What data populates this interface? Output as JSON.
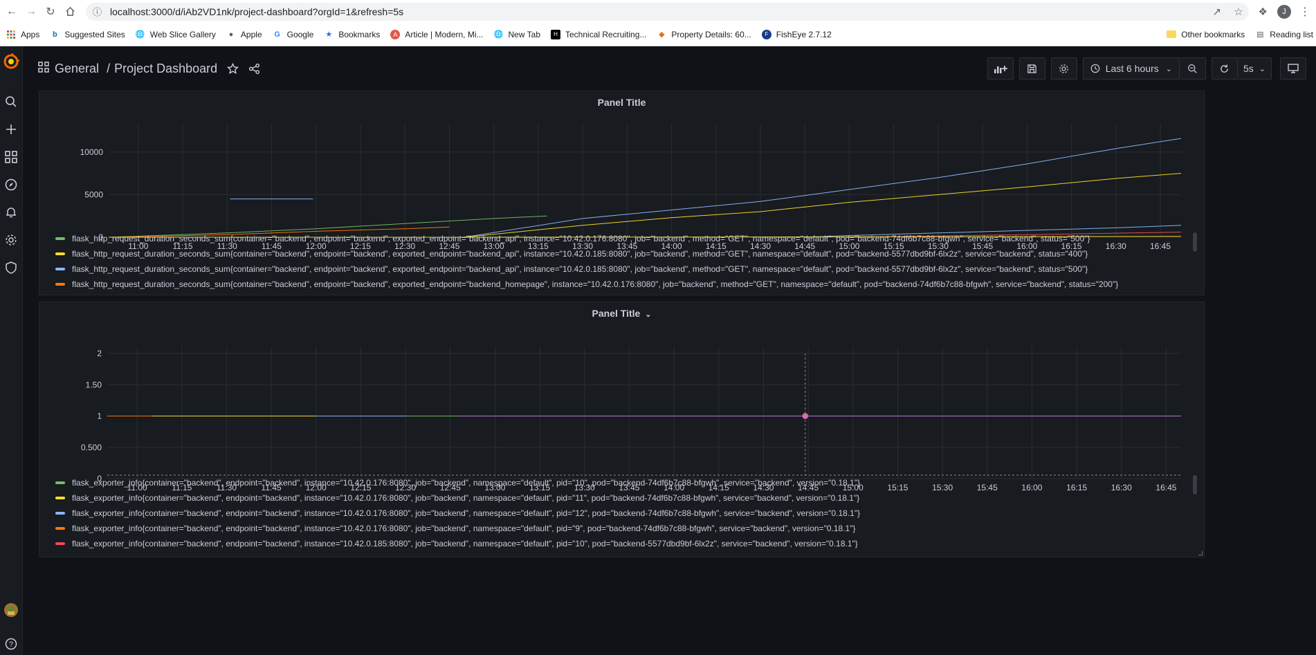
{
  "browser": {
    "url": "localhost:3000/d/iAb2VD1nk/project-dashboard?orgId=1&refresh=5s",
    "profile_initial": "J",
    "bookmarks": [
      {
        "label": "Apps",
        "icon": "apps-grid-icon",
        "color": "#ea4335"
      },
      {
        "label": "Suggested Sites",
        "icon": "bing-icon",
        "color": "#0f6cbd"
      },
      {
        "label": "Web Slice Gallery",
        "icon": "globe-icon",
        "color": "#5f6368"
      },
      {
        "label": "Apple",
        "icon": "apple-icon",
        "color": "#5f6368"
      },
      {
        "label": "Google",
        "icon": "google-icon",
        "color": "#4285f4"
      },
      {
        "label": "Bookmarks",
        "icon": "star-icon",
        "color": "#1a73e8"
      },
      {
        "label": "Article | Modern, Mi...",
        "icon": "article-icon",
        "color": "#e2574c"
      },
      {
        "label": "New Tab",
        "icon": "globe-icon",
        "color": "#5f6368"
      },
      {
        "label": "Technical Recruiting...",
        "icon": "hackerrank-icon",
        "color": "#000000"
      },
      {
        "label": "Property Details: 60...",
        "icon": "property-icon",
        "color": "#e8710a"
      },
      {
        "label": "FishEye 2.7.12",
        "icon": "fisheye-icon",
        "color": "#1a3b8c"
      }
    ],
    "other_bookmarks": "Other bookmarks",
    "reading_list": "Reading list"
  },
  "grafana": {
    "breadcrumb_folder": "General",
    "breadcrumb_sep": "/",
    "dashboard_title": "Project Dashboard",
    "time_range": "Last 6 hours",
    "refresh_interval": "5s",
    "user_initial": ""
  },
  "panels": [
    {
      "title": "Panel Title",
      "legend": [
        {
          "color": "#73bf69",
          "label": "flask_http_request_duration_seconds_sum{container=\"backend\", endpoint=\"backend\", exported_endpoint=\"backend_api\", instance=\"10.42.0.176:8080\", job=\"backend\", method=\"GET\", namespace=\"default\", pod=\"backend-74df6b7c88-bfgwh\", service=\"backend\", status=\"500\"}"
        },
        {
          "color": "#fade2a",
          "label": "flask_http_request_duration_seconds_sum{container=\"backend\", endpoint=\"backend\", exported_endpoint=\"backend_api\", instance=\"10.42.0.185:8080\", job=\"backend\", method=\"GET\", namespace=\"default\", pod=\"backend-5577dbd9bf-6lx2z\", service=\"backend\", status=\"400\"}"
        },
        {
          "color": "#8ab8ff",
          "label": "flask_http_request_duration_seconds_sum{container=\"backend\", endpoint=\"backend\", exported_endpoint=\"backend_api\", instance=\"10.42.0.185:8080\", job=\"backend\", method=\"GET\", namespace=\"default\", pod=\"backend-5577dbd9bf-6lx2z\", service=\"backend\", status=\"500\"}"
        },
        {
          "color": "#ff780a",
          "label": "flask_http_request_duration_seconds_sum{container=\"backend\", endpoint=\"backend\", exported_endpoint=\"backend_homepage\", instance=\"10.42.0.176:8080\", job=\"backend\", method=\"GET\", namespace=\"default\", pod=\"backend-74df6b7c88-bfgwh\", service=\"backend\", status=\"200\"}"
        }
      ]
    },
    {
      "title": "Panel Title",
      "title_caret": "⌄",
      "legend": [
        {
          "color": "#73bf69",
          "label": "flask_exporter_info{container=\"backend\", endpoint=\"backend\", instance=\"10.42.0.176:8080\", job=\"backend\", namespace=\"default\", pid=\"10\", pod=\"backend-74df6b7c88-bfgwh\", service=\"backend\", version=\"0.18.1\"}"
        },
        {
          "color": "#fade2a",
          "label": "flask_exporter_info{container=\"backend\", endpoint=\"backend\", instance=\"10.42.0.176:8080\", job=\"backend\", namespace=\"default\", pid=\"11\", pod=\"backend-74df6b7c88-bfgwh\", service=\"backend\", version=\"0.18.1\"}"
        },
        {
          "color": "#8ab8ff",
          "label": "flask_exporter_info{container=\"backend\", endpoint=\"backend\", instance=\"10.42.0.176:8080\", job=\"backend\", namespace=\"default\", pid=\"12\", pod=\"backend-74df6b7c88-bfgwh\", service=\"backend\", version=\"0.18.1\"}"
        },
        {
          "color": "#ff780a",
          "label": "flask_exporter_info{container=\"backend\", endpoint=\"backend\", instance=\"10.42.0.176:8080\", job=\"backend\", namespace=\"default\", pid=\"9\", pod=\"backend-74df6b7c88-bfgwh\", service=\"backend\", version=\"0.18.1\"}"
        },
        {
          "color": "#f2495c",
          "label": "flask_exporter_info{container=\"backend\", endpoint=\"backend\", instance=\"10.42.0.185:8080\", job=\"backend\", namespace=\"default\", pid=\"10\", pod=\"backend-5577dbd9bf-6lx2z\", service=\"backend\", version=\"0.18.1\"}"
        }
      ]
    }
  ],
  "chart_data": [
    {
      "type": "line",
      "title": "Panel Title",
      "x_ticks": [
        "11:00",
        "11:15",
        "11:30",
        "11:45",
        "12:00",
        "12:15",
        "12:30",
        "12:45",
        "13:00",
        "13:15",
        "13:30",
        "13:45",
        "14:00",
        "14:15",
        "14:30",
        "14:45",
        "15:00",
        "15:15",
        "15:30",
        "15:45",
        "16:00",
        "16:15",
        "16:30",
        "16:45"
      ],
      "y_ticks": [
        "0",
        "5000",
        "10000"
      ],
      "ylim": [
        0,
        12500
      ],
      "xlim": [
        "10:50",
        "16:52"
      ],
      "grid": true,
      "legend_position": "bottom",
      "series": [
        {
          "color": "#73bf69",
          "x": [
            "10:50",
            "11:30",
            "12:00",
            "12:30",
            "13:00",
            "13:18"
          ],
          "y": [
            0,
            500,
            1000,
            1600,
            2200,
            2500
          ]
        },
        {
          "color": "#8ab8ff",
          "x": [
            "11:31",
            "11:59"
          ],
          "y": [
            4500,
            4500
          ]
        },
        {
          "color": "#ff780a",
          "x": [
            "10:50",
            "11:30",
            "12:00",
            "12:30",
            "12:45"
          ],
          "y": [
            0,
            300,
            700,
            1000,
            1200
          ]
        },
        {
          "color": "#fade2a",
          "x": [
            "10:50",
            "13:18"
          ],
          "y": [
            0,
            0
          ]
        },
        {
          "color": "#8ab8ff",
          "x": [
            "12:50",
            "13:30",
            "14:00",
            "14:30",
            "15:00",
            "15:30",
            "16:00",
            "16:30",
            "16:52"
          ],
          "y": [
            0,
            2200,
            3200,
            4200,
            5600,
            7000,
            8600,
            10400,
            11600
          ]
        },
        {
          "color": "#fade2a",
          "x": [
            "12:50",
            "13:30",
            "14:00",
            "14:30",
            "15:00",
            "15:30",
            "16:00",
            "16:30",
            "16:52"
          ],
          "y": [
            0,
            1400,
            2300,
            3000,
            4100,
            5000,
            5900,
            6900,
            7500
          ]
        },
        {
          "color": "#8ab8ff",
          "x": [
            "14:45",
            "15:00",
            "15:30",
            "16:00",
            "16:30",
            "16:52"
          ],
          "y": [
            0,
            200,
            500,
            800,
            1100,
            1400
          ]
        },
        {
          "color": "#f2495c",
          "x": [
            "15:00",
            "16:00",
            "16:52"
          ],
          "y": [
            0,
            300,
            600
          ]
        },
        {
          "color": "#fade2a",
          "x": [
            "12:45",
            "16:52"
          ],
          "y": [
            0,
            100
          ]
        }
      ]
    },
    {
      "type": "line",
      "title": "Panel Title",
      "x_ticks": [
        "11:00",
        "11:15",
        "11:30",
        "11:45",
        "12:00",
        "12:15",
        "12:30",
        "12:45",
        "13:00",
        "13:15",
        "13:30",
        "13:45",
        "14:00",
        "14:15",
        "14:30",
        "14:45",
        "15:00",
        "15:15",
        "15:30",
        "15:45",
        "16:00",
        "16:15",
        "16:30",
        "16:45"
      ],
      "y_ticks": [
        "0",
        "0.500",
        "1",
        "1.50",
        "2"
      ],
      "ylim": [
        0,
        2
      ],
      "xlim": [
        "10:50",
        "16:50"
      ],
      "grid": true,
      "legend_position": "bottom",
      "hover_time": "14:44",
      "series": [
        {
          "color": "#ff780a",
          "x": [
            "10:50",
            "11:05"
          ],
          "y": [
            1,
            1
          ]
        },
        {
          "color": "#fade2a",
          "x": [
            "11:05",
            "12:00"
          ],
          "y": [
            1,
            1
          ]
        },
        {
          "color": "#8ab8ff",
          "x": [
            "12:00",
            "12:30"
          ],
          "y": [
            1,
            1
          ]
        },
        {
          "color": "#73bf69",
          "x": [
            "12:30",
            "12:48"
          ],
          "y": [
            1,
            1
          ]
        },
        {
          "color": "#b877d9",
          "x": [
            "12:48",
            "16:50"
          ],
          "y": [
            1,
            1
          ]
        }
      ]
    }
  ]
}
